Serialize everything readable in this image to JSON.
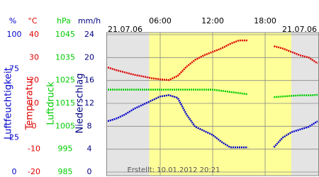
{
  "chart_data": {
    "type": "line",
    "date_left": "21.07.06",
    "date_right": "21.07.06",
    "footer": "Erstellt: 10.01.2012 20:21",
    "x": [
      0,
      1,
      2,
      3,
      4,
      5,
      6,
      7,
      8,
      9,
      10,
      11,
      12,
      13,
      14,
      15,
      16,
      17,
      18,
      19,
      20,
      21,
      22,
      23,
      24
    ],
    "xlim": [
      0,
      24
    ],
    "xticks": [
      {
        "value": 6,
        "label": "06:00"
      },
      {
        "value": 12,
        "label": "12:00"
      },
      {
        "value": 18,
        "label": "18:00"
      }
    ],
    "daylight": [
      4.75,
      21
    ],
    "grid": true,
    "axes": [
      {
        "title": "Luftfeuchtigkeit",
        "unit": "%",
        "color": "#0000cc",
        "ylim": [
          0,
          100
        ],
        "yticks": [
          0,
          25,
          75,
          100
        ]
      },
      {
        "title": "Temperatur",
        "unit": "°C",
        "color": "#dd0000",
        "ylim": [
          -20,
          40
        ],
        "yticks": [
          -20,
          -10,
          0,
          10,
          20,
          30,
          40
        ]
      },
      {
        "title": "Luftdruck",
        "unit": "hPa",
        "color": "#00cc00",
        "ylim": [
          985,
          1045
        ],
        "yticks": [
          985,
          995,
          1005,
          1015,
          1025,
          1035,
          1045
        ]
      },
      {
        "title": "Niederschlag",
        "unit": "mm/h",
        "color": "#000080",
        "ylim": [
          0,
          24
        ],
        "yticks": [
          0,
          4,
          8,
          12,
          16,
          20,
          24
        ]
      }
    ],
    "series": [
      {
        "axis": 1,
        "color": "#dd0000",
        "values": [
          25.7,
          24.5,
          23.5,
          22.5,
          21.8,
          21,
          20.5,
          20.2,
          22,
          26,
          29,
          31,
          32.5,
          34,
          36,
          37.5,
          37.5,
          null,
          null,
          35,
          34,
          32.5,
          31,
          30,
          27.5
        ]
      },
      {
        "axis": 2,
        "color": "#00cc00",
        "values": [
          1021,
          1021,
          1021,
          1021,
          1021,
          1021,
          1021,
          1021,
          1021,
          1021,
          1021,
          1021,
          1021,
          1020.5,
          1020,
          1019.5,
          1019,
          null,
          null,
          1017.7,
          1018,
          1018.3,
          1018.5,
          1018.5,
          1018.7
        ]
      },
      {
        "axis": 0,
        "color": "#0000cc",
        "values": [
          37,
          39,
          42,
          46,
          49,
          52,
          55,
          56,
          54,
          42,
          33,
          30,
          27,
          22,
          18,
          18,
          18,
          null,
          null,
          18,
          25,
          29,
          31,
          33,
          37
        ]
      }
    ]
  }
}
